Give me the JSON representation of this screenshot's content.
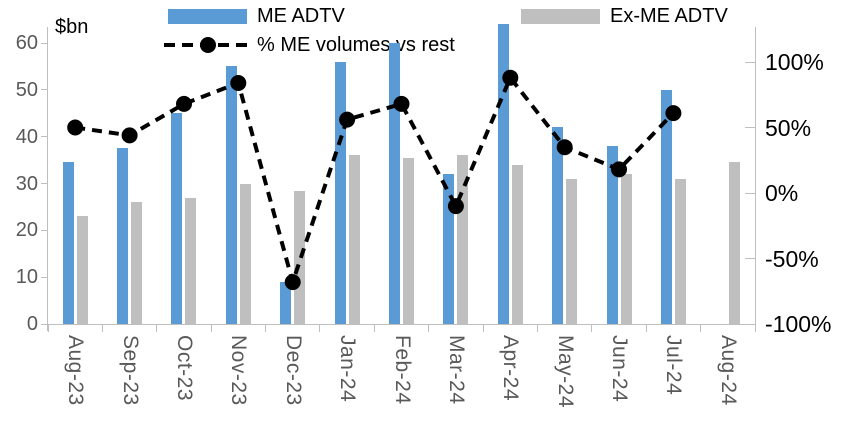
{
  "chart_data": {
    "type": "combo",
    "title": "",
    "legend_position": "top",
    "grid": false,
    "left_axis": {
      "title": "$bn",
      "ticks": [
        "0",
        "10",
        "20",
        "30",
        "40",
        "50",
        "60"
      ],
      "tick_values": [
        0,
        10,
        20,
        30,
        40,
        50,
        60
      ],
      "min": 0,
      "max": 63.5
    },
    "right_axis": {
      "ticks": [
        "100%",
        "50%",
        "0%",
        "-50%",
        "-100%"
      ],
      "tick_values": [
        100,
        50,
        0,
        -50,
        -100
      ],
      "min": -100,
      "max": 126
    },
    "categories": [
      "Aug-23",
      "Sep-23",
      "Oct-23",
      "Nov-23",
      "Dec-23",
      "Jan-24",
      "Feb-24",
      "Mar-24",
      "Apr-24",
      "May-24",
      "Jun-24",
      "Jul-24",
      "Aug-24"
    ],
    "series": [
      {
        "name": "ME ADTV",
        "type": "bar",
        "axis": "left",
        "color": "#5B9BD5",
        "values": [
          34.5,
          37.5,
          45,
          55,
          9,
          56,
          60,
          32,
          64,
          42,
          38,
          50,
          null
        ]
      },
      {
        "name": "Ex-ME ADTV",
        "type": "bar",
        "axis": "left",
        "color": "#BFBFBF",
        "values": [
          23,
          26,
          27,
          30,
          28.5,
          36,
          35.5,
          36,
          34,
          31,
          32,
          31,
          34.5
        ]
      },
      {
        "name": "% ME volumes vs rest",
        "type": "line",
        "axis": "right",
        "color": "#000000",
        "line_style": "dashed",
        "marker": "filled-circle",
        "values": [
          50,
          44,
          68,
          84,
          -68,
          56,
          68,
          -10,
          88,
          35,
          18,
          61,
          null
        ]
      }
    ]
  }
}
